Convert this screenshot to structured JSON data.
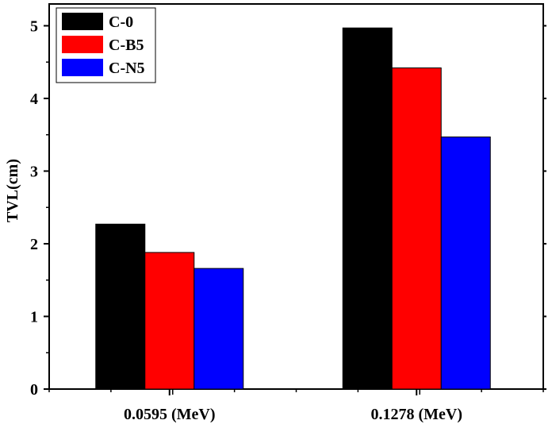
{
  "chart_data": {
    "type": "bar",
    "categories": [
      "0.0595 (MeV)",
      "0.1278 (MeV)"
    ],
    "series": [
      {
        "name": "C-0",
        "color": "#000000",
        "values": [
          2.27,
          4.97
        ]
      },
      {
        "name": "C-B5",
        "color": "#ff0000",
        "values": [
          1.88,
          4.42
        ]
      },
      {
        "name": "C-N5",
        "color": "#0000ff",
        "values": [
          1.66,
          3.47
        ]
      }
    ],
    "xlabel": "",
    "ylabel": "TVL(cm)",
    "ylim": [
      0,
      5.3
    ],
    "yticks": [
      "0",
      "1",
      "2",
      "3",
      "4",
      "5"
    ],
    "grid": false,
    "legend_position": "top-left"
  }
}
